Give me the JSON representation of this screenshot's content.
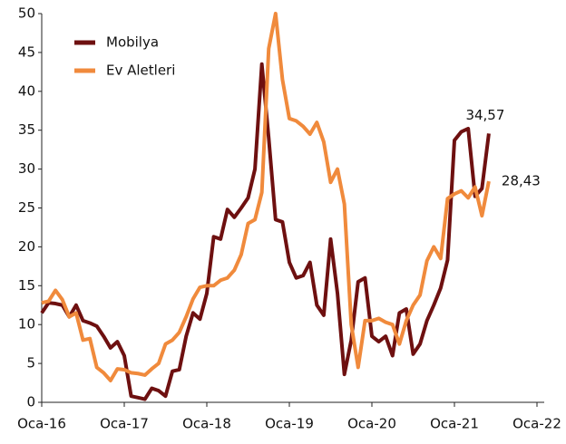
{
  "chart_data": {
    "type": "line",
    "categories": [
      "Oca-16",
      null,
      null,
      null,
      null,
      null,
      null,
      null,
      null,
      null,
      null,
      null,
      "Oca-17",
      null,
      null,
      null,
      null,
      null,
      null,
      null,
      null,
      null,
      null,
      null,
      "Oca-18",
      null,
      null,
      null,
      null,
      null,
      null,
      null,
      null,
      null,
      null,
      null,
      "Oca-19",
      null,
      null,
      null,
      null,
      null,
      null,
      null,
      null,
      null,
      null,
      null,
      "Oca-20",
      null,
      null,
      null,
      null,
      null,
      null,
      null,
      null,
      null,
      null,
      null,
      "Oca-21",
      null,
      null,
      null,
      null,
      null,
      null,
      null,
      null,
      null,
      null,
      null,
      "Oca-22"
    ],
    "series": [
      {
        "name": "Mobilya",
        "color": "#6e1010",
        "values": [
          11.5,
          12.8,
          12.7,
          12.5,
          11,
          12.5,
          10.5,
          10.2,
          9.8,
          8.5,
          7,
          7.8,
          6,
          0.8,
          0.6,
          0.4,
          1.8,
          1.5,
          0.8,
          4,
          4.2,
          8.5,
          11.5,
          10.7,
          14,
          21.3,
          21,
          24.8,
          23.8,
          25,
          26.3,
          30,
          43.5,
          34,
          23.5,
          23.2,
          18,
          16,
          16.3,
          18,
          12.5,
          11.2,
          21,
          14,
          3.6,
          8,
          15.5,
          16,
          8.5,
          7.8,
          8.5,
          6,
          11.5,
          12,
          6.2,
          7.5,
          10.5,
          12.5,
          14.7,
          18.3,
          33.7,
          34.8,
          35.2,
          26.5,
          27.5,
          34.57,
          null,
          null,
          null,
          null,
          null,
          null,
          null
        ],
        "value_labels": [
          null,
          null,
          null,
          null,
          null,
          null,
          null,
          null,
          null,
          null,
          null,
          null,
          null,
          null,
          null,
          null,
          null,
          null,
          null,
          null,
          null,
          null,
          null,
          null,
          null,
          null,
          null,
          null,
          null,
          null,
          null,
          null,
          null,
          null,
          null,
          null,
          null,
          null,
          null,
          null,
          null,
          null,
          null,
          null,
          null,
          null,
          null,
          null,
          null,
          null,
          null,
          null,
          null,
          null,
          null,
          null,
          null,
          null,
          null,
          null,
          null,
          null,
          null,
          null,
          null,
          "34,57",
          null,
          null,
          null,
          null,
          null,
          null,
          null
        ]
      },
      {
        "name": "Ev Aletleri",
        "color": "#f08a3c",
        "values": [
          12.8,
          13,
          14.4,
          13.2,
          11,
          11.5,
          8,
          8.2,
          4.5,
          3.8,
          2.8,
          4.3,
          4.2,
          3.8,
          3.7,
          3.5,
          4.3,
          5,
          7.5,
          8,
          9,
          11,
          13.3,
          14.8,
          15,
          15,
          15.7,
          16,
          17,
          19,
          23,
          23.5,
          27,
          45.5,
          50,
          41.5,
          36.5,
          36.2,
          35.5,
          34.5,
          36,
          33.5,
          28.3,
          30,
          25.5,
          10,
          4.5,
          10.5,
          10.5,
          10.8,
          10.3,
          10,
          7.5,
          10.5,
          12.5,
          13.8,
          18.2,
          20,
          18.5,
          26.2,
          26.8,
          27.2,
          26.3,
          27.7,
          24,
          28.43,
          null,
          null,
          null,
          null,
          null,
          null,
          null
        ],
        "value_labels": [
          null,
          null,
          null,
          null,
          null,
          null,
          null,
          null,
          null,
          null,
          null,
          null,
          null,
          null,
          null,
          null,
          null,
          null,
          null,
          null,
          null,
          null,
          null,
          null,
          null,
          null,
          null,
          null,
          null,
          null,
          null,
          null,
          null,
          null,
          null,
          null,
          null,
          null,
          null,
          null,
          null,
          null,
          null,
          null,
          null,
          null,
          null,
          null,
          null,
          null,
          null,
          null,
          null,
          null,
          null,
          null,
          null,
          null,
          null,
          null,
          null,
          null,
          null,
          null,
          null,
          "28,43",
          null,
          null,
          null,
          null,
          null,
          null,
          null
        ]
      }
    ],
    "ylim": [
      0,
      50
    ],
    "yticks": [
      0,
      5,
      10,
      15,
      20,
      25,
      30,
      35,
      40,
      45,
      50
    ],
    "grid": false,
    "legend": "top-left"
  }
}
